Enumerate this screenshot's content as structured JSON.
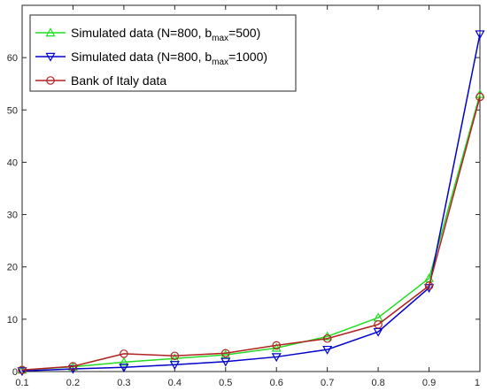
{
  "chart_data": {
    "type": "line",
    "title": "",
    "xlabel": "",
    "ylabel": "",
    "xlim": [
      0.1,
      1
    ],
    "ylim": [
      0,
      70
    ],
    "x": [
      0.1,
      0.2,
      0.3,
      0.4,
      0.5,
      0.6,
      0.7,
      0.8,
      0.9,
      1
    ],
    "xticks": [
      "0.1",
      "0.2",
      "0.3",
      "0.4",
      "0.5",
      "0.6",
      "0.7",
      "0.8",
      "0.9",
      "1"
    ],
    "yticks": [
      "0",
      "10",
      "20",
      "30",
      "40",
      "50",
      "60"
    ],
    "grid": false,
    "legend_position": "top-left",
    "series": [
      {
        "name": "Simulated data (N=800, b_max=500)",
        "legend": {
          "prefix": "Simulated data (N=800, b",
          "sub": "max",
          "suffix": "=500)"
        },
        "color": "#22dd22",
        "marker": "triangle-up",
        "values": [
          0.3,
          0.9,
          1.8,
          2.5,
          3.2,
          4.5,
          6.7,
          10.3,
          17.8,
          53
        ]
      },
      {
        "name": "Simulated data (N=800, b_max=1000)",
        "legend": {
          "prefix": "Simulated data (N=800, b",
          "sub": "max",
          "suffix": "=1000)"
        },
        "color": "#0000cc",
        "marker": "triangle-down",
        "values": [
          0.1,
          0.5,
          0.8,
          1.3,
          1.9,
          2.8,
          4.2,
          7.6,
          16,
          64.5
        ]
      },
      {
        "name": "Bank of Italy data",
        "legend": {
          "prefix": "Bank of Italy data",
          "sub": "",
          "suffix": ""
        },
        "color": "#b22222",
        "marker": "circle",
        "values": [
          0.3,
          1.0,
          3.4,
          3.0,
          3.5,
          5.0,
          6.3,
          9.0,
          16.4,
          52.5
        ]
      }
    ]
  }
}
